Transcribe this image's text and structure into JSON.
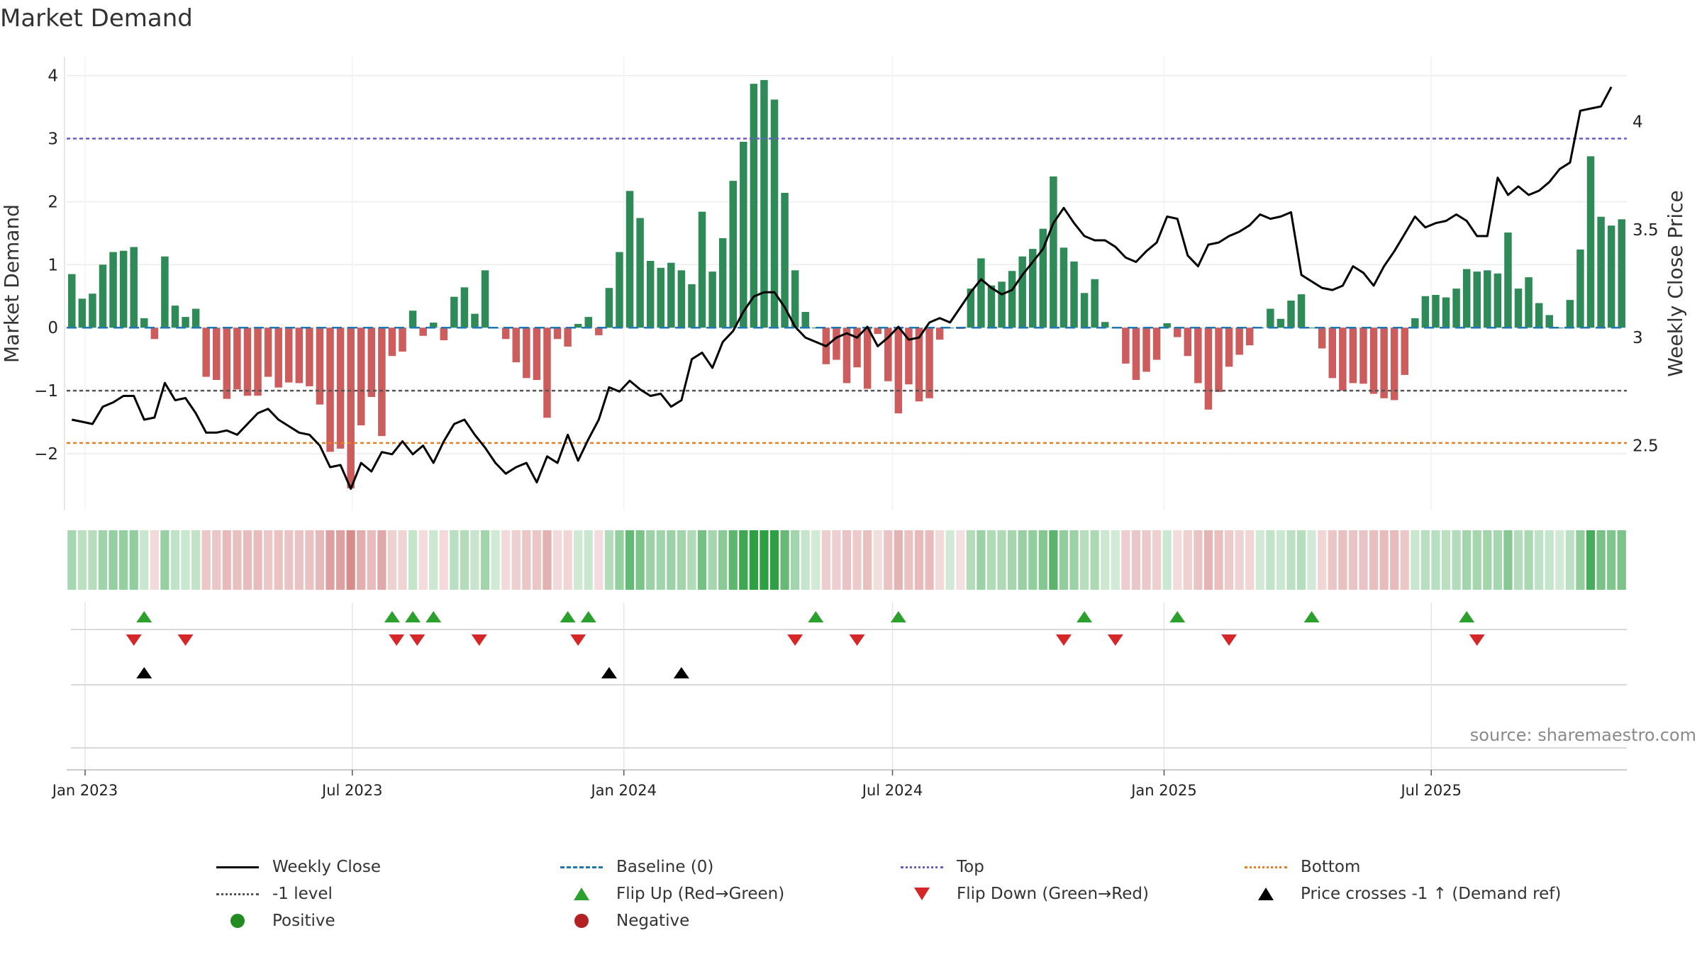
{
  "title": "Market Demand",
  "source": "source: sharemaestro.com",
  "colors": {
    "pos_bar": "#2e8b57",
    "neg_bar": "#cd5c5c",
    "close": "#000000",
    "baseline": "#1f77b4",
    "top": "#6a5acd",
    "bottom": "#e67e22",
    "level": "#555555",
    "flip_up": "#2ca02c",
    "flip_down": "#d62728",
    "cross": "#000000",
    "positive": "#228b22",
    "negative": "#b22222"
  },
  "legend": [
    {
      "label": "Weekly Close",
      "symbol": "line-solid",
      "color": "#000000"
    },
    {
      "label": "Baseline (0)",
      "symbol": "line-dashed",
      "color": "#1f77b4"
    },
    {
      "label": "Top",
      "symbol": "line-dotted",
      "color": "#6a5acd"
    },
    {
      "label": "Bottom",
      "symbol": "line-dotted",
      "color": "#e67e22"
    },
    {
      "label": "-1 level",
      "symbol": "line-dotted",
      "color": "#555555"
    },
    {
      "label": "Flip Up (Red→Green)",
      "symbol": "triangle-up",
      "color": "#2ca02c"
    },
    {
      "label": "Flip Down (Green→Red)",
      "symbol": "triangle-down",
      "color": "#d62728"
    },
    {
      "label": "Price crosses -1 ↑ (Demand ref)",
      "symbol": "triangle-up",
      "color": "#000000"
    },
    {
      "label": "Positive",
      "symbol": "circle",
      "color": "#228b22"
    },
    {
      "label": "Negative",
      "symbol": "circle",
      "color": "#b22222"
    }
  ],
  "chart_data": {
    "type": "bar",
    "title": "Market Demand",
    "ylabel": "Market Demand",
    "y2label": "Weekly Close Price",
    "ylim": [
      -2.9,
      4.3
    ],
    "yticks": [
      -2,
      -1,
      0,
      1,
      2,
      3,
      4
    ],
    "ytick_labels": [
      "−2",
      "−1",
      "0",
      "1",
      "2",
      "3",
      "4"
    ],
    "y2lim": [
      2.2,
      4.3
    ],
    "y2ticks": [
      2.5,
      3,
      3.5,
      4
    ],
    "y2tick_labels": [
      "2.5",
      "3",
      "3.5",
      "4"
    ],
    "x_start": "2022-12-23",
    "week_days": 7,
    "xticks": [
      {
        "label": "Jan 2023",
        "date": "2023-01-01"
      },
      {
        "label": "Jul 2023",
        "date": "2023-07-01"
      },
      {
        "label": "Jan 2024",
        "date": "2024-01-01"
      },
      {
        "label": "Jul 2024",
        "date": "2024-07-01"
      },
      {
        "label": "Jan 2025",
        "date": "2025-01-01"
      },
      {
        "label": "Jul 2025",
        "date": "2025-07-01"
      }
    ],
    "reference_lines": {
      "baseline": 0,
      "top": 3.0,
      "bottom": -1.83,
      "level": -1.0
    },
    "demand": [
      0.85,
      0.46,
      0.54,
      1.0,
      1.2,
      1.22,
      1.28,
      0.15,
      -0.18,
      1.13,
      0.35,
      0.17,
      0.3,
      -0.78,
      -0.83,
      -1.13,
      -0.98,
      -1.08,
      -1.08,
      -0.78,
      -0.95,
      -0.87,
      -0.88,
      -0.93,
      -1.22,
      -1.97,
      -1.92,
      -2.55,
      -1.55,
      -1.1,
      -1.72,
      -0.45,
      -0.38,
      0.27,
      -0.13,
      0.08,
      -0.2,
      0.49,
      0.64,
      0.22,
      0.91,
      0.0,
      -0.18,
      -0.55,
      -0.8,
      -0.83,
      -1.43,
      -0.18,
      -0.3,
      0.06,
      0.17,
      -0.12,
      0.63,
      1.2,
      2.17,
      1.74,
      1.06,
      0.95,
      1.03,
      0.91,
      0.69,
      1.84,
      0.89,
      1.42,
      2.33,
      2.95,
      3.87,
      3.93,
      3.62,
      2.14,
      0.91,
      0.25,
      0.0,
      -0.58,
      -0.51,
      -0.88,
      -0.63,
      -0.97,
      -0.1,
      -0.85,
      -1.36,
      -0.9,
      -1.17,
      -1.12,
      -0.19,
      0.0,
      -0.02,
      0.62,
      1.1,
      0.67,
      0.73,
      0.9,
      1.13,
      1.25,
      1.57,
      2.4,
      1.27,
      1.05,
      0.55,
      0.77,
      0.09,
      0.0,
      -0.57,
      -0.83,
      -0.7,
      -0.51,
      0.07,
      -0.15,
      -0.45,
      -0.88,
      -1.3,
      -1.02,
      -0.62,
      -0.43,
      -0.28,
      0.0,
      0.3,
      0.14,
      0.43,
      0.53,
      0.0,
      -0.33,
      -0.8,
      -1.0,
      -0.88,
      -0.89,
      -1.05,
      -1.12,
      -1.15,
      -0.75,
      0.15,
      0.5,
      0.52,
      0.48,
      0.62,
      0.93,
      0.89,
      0.91,
      0.86,
      1.51,
      0.62,
      0.8,
      0.39,
      0.2,
      0.0,
      0.44,
      1.24,
      2.72,
      1.76,
      1.62,
      1.72
    ],
    "close": [
      2.62,
      2.61,
      2.6,
      2.68,
      2.7,
      2.73,
      2.73,
      2.62,
      2.63,
      2.79,
      2.71,
      2.72,
      2.65,
      2.56,
      2.56,
      2.57,
      2.55,
      2.6,
      2.65,
      2.67,
      2.62,
      2.59,
      2.56,
      2.55,
      2.5,
      2.4,
      2.41,
      2.3,
      2.42,
      2.38,
      2.47,
      2.46,
      2.52,
      2.46,
      2.5,
      2.42,
      2.52,
      2.6,
      2.62,
      2.55,
      2.49,
      2.42,
      2.37,
      2.4,
      2.42,
      2.33,
      2.45,
      2.42,
      2.55,
      2.43,
      2.53,
      2.62,
      2.77,
      2.75,
      2.8,
      2.76,
      2.73,
      2.74,
      2.68,
      2.71,
      2.9,
      2.93,
      2.86,
      2.98,
      3.03,
      3.12,
      3.19,
      3.21,
      3.21,
      3.14,
      3.05,
      3.0,
      2.98,
      2.96,
      3.0,
      3.02,
      3.0,
      3.05,
      2.96,
      3.0,
      3.05,
      2.99,
      3.0,
      3.07,
      3.09,
      3.07,
      3.14,
      3.21,
      3.27,
      3.23,
      3.2,
      3.22,
      3.29,
      3.35,
      3.41,
      3.53,
      3.6,
      3.53,
      3.47,
      3.45,
      3.45,
      3.42,
      3.37,
      3.35,
      3.4,
      3.44,
      3.56,
      3.55,
      3.38,
      3.33,
      3.43,
      3.44,
      3.47,
      3.49,
      3.52,
      3.57,
      3.55,
      3.56,
      3.58,
      3.29,
      3.26,
      3.23,
      3.22,
      3.24,
      3.33,
      3.3,
      3.24,
      3.33,
      3.4,
      3.48,
      3.56,
      3.51,
      3.53,
      3.54,
      3.57,
      3.54,
      3.47,
      3.47,
      3.74,
      3.66,
      3.7,
      3.66,
      3.68,
      3.72,
      3.78,
      3.81,
      4.05,
      4.06,
      4.07,
      4.16
    ]
  },
  "heat_strip": {
    "label": "Demand intensity strip"
  },
  "events": {
    "flip_up_dates": [
      "2023-02-10",
      "2023-07-28",
      "2023-08-11",
      "2023-08-25",
      "2023-11-24",
      "2023-12-08",
      "2024-05-10",
      "2024-07-05",
      "2024-11-08",
      "2025-01-10",
      "2025-04-11",
      "2025-07-25"
    ],
    "flip_down_dates": [
      "2023-02-03",
      "2023-03-10",
      "2023-07-31",
      "2023-08-14",
      "2023-09-25",
      "2023-12-01",
      "2024-04-26",
      "2024-06-07",
      "2024-10-25",
      "2024-11-29",
      "2025-02-14",
      "2025-08-01"
    ],
    "cross_dates": [
      "2023-02-10",
      "2023-12-22",
      "2024-02-09"
    ]
  }
}
